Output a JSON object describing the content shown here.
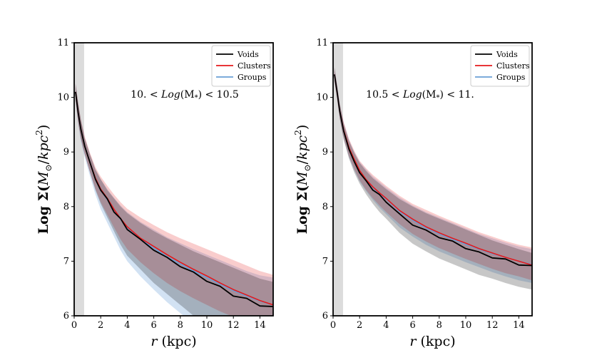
{
  "chart_data": [
    {
      "type": "line",
      "panel": "left",
      "title": "",
      "annotation": "10. < Log(M*) < 10.5",
      "annotation_parts": {
        "pre": "10. < ",
        "log": "Log",
        "mid": "(M",
        "sub": "*",
        "post": ") < 10.5"
      },
      "xlabel": "r (kpc)",
      "xlabel_parts": {
        "var": "r",
        "unit": " (kpc)"
      },
      "ylabel": "Log Σ(M⊙/kpc²)",
      "ylabel_parts": {
        "pre": "Log Σ(",
        "m": "M",
        "sun": "⊙",
        "slash": "/",
        "kpc": "kpc",
        "sup": "2",
        "close": ")"
      },
      "xlim": [
        0,
        15
      ],
      "ylim": [
        6,
        11
      ],
      "xticks": [
        0,
        2,
        4,
        6,
        8,
        10,
        12,
        14
      ],
      "yticks": [
        6,
        7,
        8,
        9,
        10,
        11
      ],
      "shaded_region": [
        0,
        0.75
      ],
      "legend": {
        "position": "top-right",
        "entries": [
          "Voids",
          "Clusters",
          "Groups"
        ]
      },
      "x": [
        0.1,
        0.3,
        0.5,
        0.8,
        1.2,
        1.6,
        2.0,
        2.5,
        3.0,
        3.5,
        4.0,
        5.0,
        6.0,
        7.0,
        8.0,
        9.0,
        10.0,
        11.0,
        12.0,
        13.0,
        14.0,
        15.0
      ],
      "series": [
        {
          "name": "Voids",
          "color": "#000000",
          "values": [
            10.1,
            9.72,
            9.42,
            9.1,
            8.8,
            8.5,
            8.3,
            8.12,
            7.92,
            7.76,
            7.6,
            7.38,
            7.22,
            7.05,
            6.92,
            6.78,
            6.65,
            6.52,
            6.38,
            6.3,
            6.2,
            6.15
          ],
          "band_low": [
            9.95,
            9.55,
            9.25,
            8.95,
            8.62,
            8.3,
            8.05,
            7.8,
            7.55,
            7.3,
            7.1,
            6.85,
            6.6,
            6.4,
            6.2,
            6.0,
            5.85,
            5.7,
            5.55,
            5.45,
            5.35,
            5.3
          ],
          "band_high": [
            10.25,
            9.9,
            9.6,
            9.25,
            8.95,
            8.68,
            8.5,
            8.3,
            8.15,
            8.0,
            7.88,
            7.7,
            7.55,
            7.42,
            7.3,
            7.18,
            7.08,
            6.98,
            6.88,
            6.78,
            6.68,
            6.62
          ]
        },
        {
          "name": "Clusters",
          "color": "#e41a1c",
          "values": [
            10.1,
            9.72,
            9.42,
            9.1,
            8.8,
            8.52,
            8.32,
            8.15,
            7.95,
            7.78,
            7.63,
            7.42,
            7.27,
            7.12,
            6.98,
            6.85,
            6.73,
            6.6,
            6.48,
            6.38,
            6.28,
            6.2
          ],
          "band_low": [
            9.95,
            9.55,
            9.25,
            8.95,
            8.62,
            8.32,
            8.08,
            7.85,
            7.62,
            7.4,
            7.22,
            6.98,
            6.78,
            6.6,
            6.45,
            6.32,
            6.2,
            6.08,
            5.98,
            5.88,
            5.8,
            5.75
          ],
          "band_high": [
            10.25,
            9.9,
            9.6,
            9.28,
            8.98,
            8.72,
            8.55,
            8.38,
            8.22,
            8.08,
            7.96,
            7.8,
            7.66,
            7.53,
            7.42,
            7.32,
            7.22,
            7.12,
            7.02,
            6.92,
            6.82,
            6.75
          ]
        },
        {
          "name": "Groups",
          "color": "#6a9fd6",
          "values": [
            10.1,
            9.72,
            9.42,
            9.1,
            8.8,
            8.5,
            8.3,
            8.13,
            7.93,
            7.77,
            7.62,
            7.4,
            7.24,
            7.08,
            6.95,
            6.82,
            6.7,
            6.58,
            6.46,
            6.36,
            6.27,
            6.2
          ],
          "band_low": [
            9.95,
            9.52,
            9.2,
            8.9,
            8.55,
            8.22,
            7.95,
            7.7,
            7.45,
            7.2,
            7.0,
            6.72,
            6.48,
            6.25,
            6.05,
            5.85,
            5.7,
            5.55,
            5.4,
            5.3,
            5.2,
            5.15
          ],
          "band_high": [
            10.25,
            9.88,
            9.58,
            9.25,
            8.95,
            8.68,
            8.5,
            8.32,
            8.16,
            8.02,
            7.9,
            7.72,
            7.58,
            7.44,
            7.33,
            7.22,
            7.12,
            7.02,
            6.92,
            6.82,
            6.74,
            6.7
          ]
        }
      ]
    },
    {
      "type": "line",
      "panel": "right",
      "title": "",
      "annotation": "10.5 < Log(M*) < 11.",
      "annotation_parts": {
        "pre": "10.5 < ",
        "log": "Log",
        "mid": "(M",
        "sub": "*",
        "post": ") < 11."
      },
      "xlabel": "r (kpc)",
      "xlabel_parts": {
        "var": "r",
        "unit": " (kpc)"
      },
      "ylabel": "Log Σ(M⊙/kpc²)",
      "ylabel_parts": {
        "pre": "Log Σ(",
        "m": "M",
        "sun": "⊙",
        "slash": "/",
        "kpc": "kpc",
        "sup": "2",
        "close": ")"
      },
      "xlim": [
        0,
        15
      ],
      "ylim": [
        6,
        11
      ],
      "xticks": [
        0,
        2,
        4,
        6,
        8,
        10,
        12,
        14
      ],
      "yticks": [
        6,
        7,
        8,
        9,
        10,
        11
      ],
      "shaded_region": [
        0,
        0.75
      ],
      "legend": {
        "position": "top-right",
        "entries": [
          "Voids",
          "Clusters",
          "Groups"
        ]
      },
      "x": [
        0.1,
        0.3,
        0.5,
        0.8,
        1.2,
        1.6,
        2.0,
        2.5,
        3.0,
        3.5,
        4.0,
        5.0,
        6.0,
        7.0,
        8.0,
        9.0,
        10.0,
        11.0,
        12.0,
        13.0,
        14.0,
        15.0
      ],
      "series": [
        {
          "name": "Voids",
          "color": "#000000",
          "values": [
            10.42,
            10.1,
            9.75,
            9.38,
            9.05,
            8.82,
            8.62,
            8.45,
            8.32,
            8.2,
            8.1,
            7.85,
            7.68,
            7.55,
            7.45,
            7.35,
            7.25,
            7.15,
            7.08,
            7.02,
            6.95,
            6.9
          ],
          "band_low": [
            10.3,
            9.98,
            9.62,
            9.22,
            8.88,
            8.62,
            8.42,
            8.22,
            8.05,
            7.9,
            7.78,
            7.52,
            7.32,
            7.18,
            7.05,
            6.95,
            6.85,
            6.75,
            6.68,
            6.6,
            6.53,
            6.48
          ],
          "band_high": [
            10.55,
            10.22,
            9.88,
            9.52,
            9.2,
            8.98,
            8.8,
            8.65,
            8.52,
            8.42,
            8.32,
            8.14,
            8.0,
            7.88,
            7.78,
            7.68,
            7.58,
            7.48,
            7.38,
            7.3,
            7.22,
            7.15
          ]
        },
        {
          "name": "Clusters",
          "color": "#e41a1c",
          "values": [
            10.42,
            10.1,
            9.75,
            9.4,
            9.08,
            8.86,
            8.66,
            8.49,
            8.36,
            8.25,
            8.15,
            7.93,
            7.77,
            7.63,
            7.52,
            7.42,
            7.33,
            7.23,
            7.15,
            7.07,
            7.0,
            6.93
          ],
          "band_low": [
            10.3,
            9.98,
            9.62,
            9.25,
            8.92,
            8.68,
            8.48,
            8.3,
            8.15,
            8.02,
            7.9,
            7.68,
            7.5,
            7.36,
            7.24,
            7.14,
            7.04,
            6.95,
            6.86,
            6.78,
            6.72,
            6.65
          ],
          "band_high": [
            10.55,
            10.22,
            9.88,
            9.55,
            9.24,
            9.02,
            8.84,
            8.7,
            8.58,
            8.48,
            8.38,
            8.2,
            8.05,
            7.94,
            7.83,
            7.73,
            7.63,
            7.53,
            7.45,
            7.37,
            7.3,
            7.25
          ]
        },
        {
          "name": "Groups",
          "color": "#6a9fd6",
          "values": [
            10.42,
            10.1,
            9.75,
            9.39,
            9.07,
            8.85,
            8.65,
            8.48,
            8.35,
            8.24,
            8.14,
            7.91,
            7.75,
            7.61,
            7.5,
            7.4,
            7.31,
            7.22,
            7.14,
            7.07,
            7.0,
            6.94
          ],
          "band_low": [
            10.3,
            9.98,
            9.62,
            9.24,
            8.9,
            8.66,
            8.46,
            8.28,
            8.12,
            7.98,
            7.86,
            7.62,
            7.45,
            7.3,
            7.18,
            7.08,
            6.98,
            6.89,
            6.8,
            6.72,
            6.65,
            6.6
          ],
          "band_high": [
            10.55,
            10.22,
            9.88,
            9.53,
            9.22,
            9.0,
            8.82,
            8.68,
            8.55,
            8.45,
            8.35,
            8.17,
            8.02,
            7.9,
            7.8,
            7.7,
            7.6,
            7.5,
            7.42,
            7.34,
            7.27,
            7.22
          ]
        }
      ]
    }
  ]
}
